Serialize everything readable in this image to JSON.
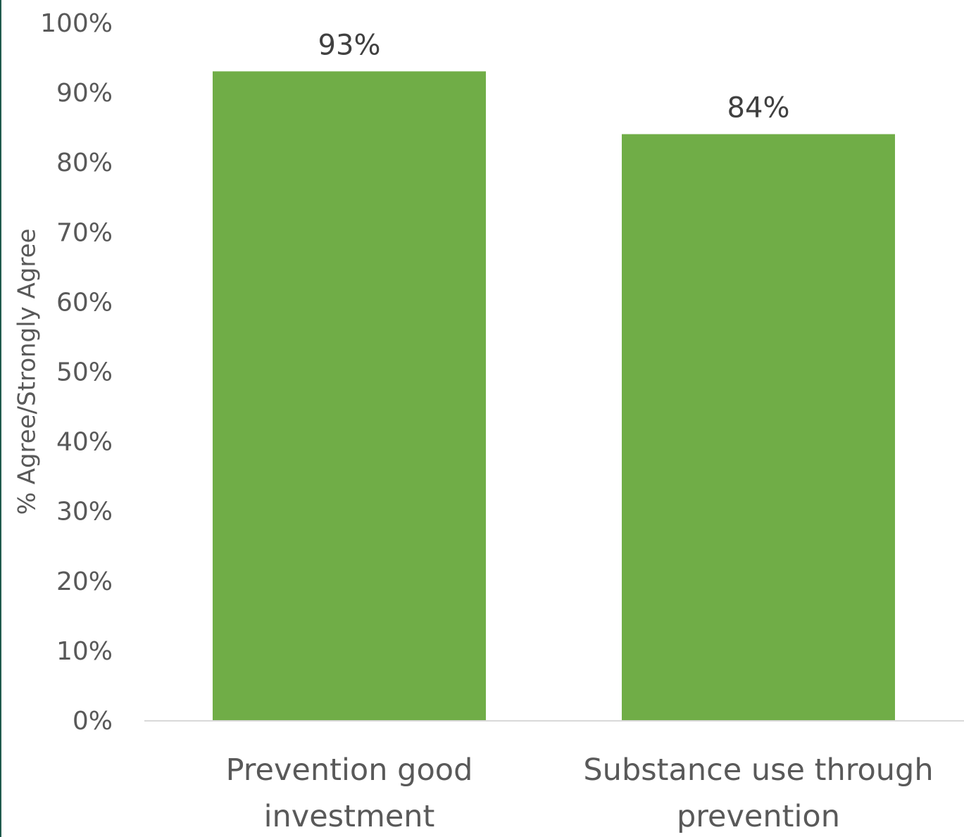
{
  "chart_data": {
    "type": "bar",
    "title": "",
    "xlabel": "",
    "ylabel": "% Agree/Strongly Agree",
    "categories": [
      [
        "Prevention good",
        "investment"
      ],
      [
        "Substance use through",
        "prevention"
      ]
    ],
    "values": [
      93,
      84
    ],
    "data_labels": [
      "93%",
      "84%"
    ],
    "ylim": [
      0,
      100
    ],
    "yticks": [
      0,
      10,
      20,
      30,
      40,
      50,
      60,
      70,
      80,
      90,
      100
    ],
    "ytick_labels": [
      "0%",
      "10%",
      "20%",
      "30%",
      "40%",
      "50%",
      "60%",
      "70%",
      "80%",
      "90%",
      "100%"
    ],
    "grid": false,
    "legend": "none",
    "colors": {
      "bar": "#70ad47",
      "axis_line": "#d9d9d9",
      "text": "#595959",
      "data_label": "#404040",
      "left_edge": "#1f5a4d"
    }
  }
}
